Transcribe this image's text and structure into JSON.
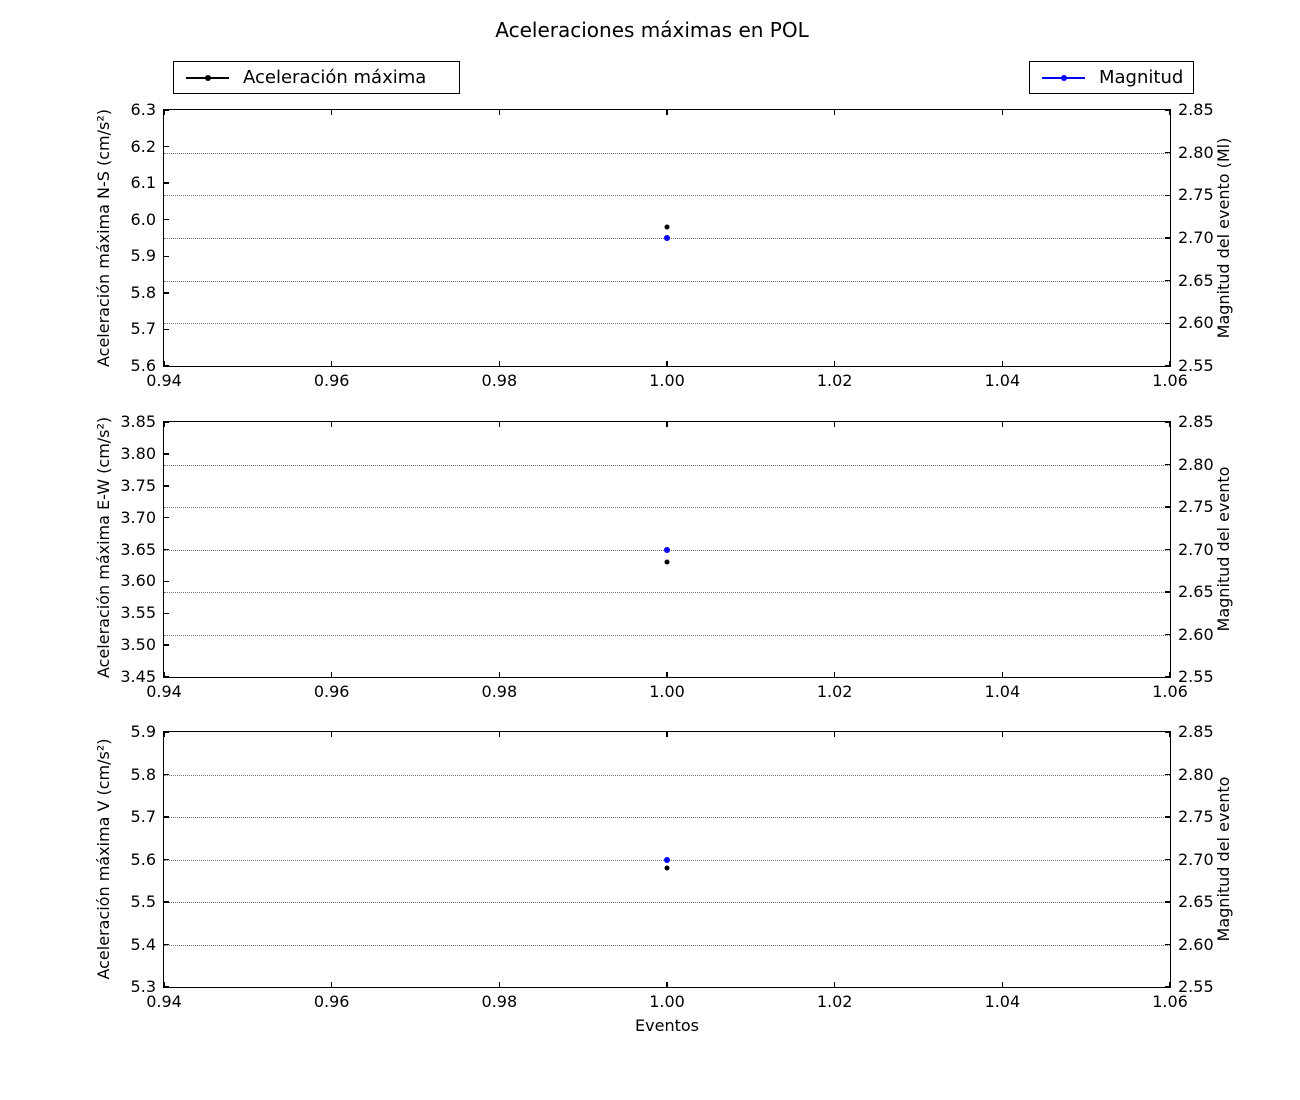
{
  "figure": {
    "title": "Aceleraciones máximas en POL",
    "xlabel": "Eventos",
    "background": "#ffffff",
    "colors": {
      "acceleration": "#000000",
      "magnitude": "#0000ff",
      "grid": "#777777",
      "frame": "#000000"
    }
  },
  "legends": [
    {
      "label": "Aceleración máxima",
      "color": "#000000"
    },
    {
      "label": "Magnitud",
      "color": "#0000ff"
    }
  ],
  "chart_data": [
    {
      "type": "scatter",
      "ylabel": "Aceleración máxima N-S (cm/s²)",
      "y2label": "Magnitud del evento (Ml)",
      "xlim": [
        0.94,
        1.06
      ],
      "ylim": [
        5.6,
        6.3
      ],
      "y2lim": [
        2.55,
        2.85
      ],
      "xticks": [
        "0.94",
        "0.96",
        "0.98",
        "1.00",
        "1.02",
        "1.04",
        "1.06"
      ],
      "yticks": [
        "5.6",
        "5.7",
        "5.8",
        "5.9",
        "6.0",
        "6.1",
        "6.2",
        "6.3"
      ],
      "y2ticks": [
        "2.55",
        "2.60",
        "2.65",
        "2.70",
        "2.75",
        "2.80",
        "2.85"
      ],
      "grid": {
        "axis": "y2",
        "style": "dotted",
        "skip_edges": true
      },
      "series": [
        {
          "name": "Aceleración máxima",
          "axis": "y",
          "color": "#000000",
          "marker_px": 5,
          "points": [
            {
              "x": 1.0,
              "y": 5.98
            }
          ]
        },
        {
          "name": "Magnitud",
          "axis": "y2",
          "color": "#0000ff",
          "marker_px": 6,
          "points": [
            {
              "x": 1.0,
              "y": 2.7
            }
          ]
        }
      ]
    },
    {
      "type": "scatter",
      "ylabel": "Aceleración máxima E-W (cm/s²)",
      "y2label": "Magnitud del evento",
      "xlim": [
        0.94,
        1.06
      ],
      "ylim": [
        3.45,
        3.85
      ],
      "y2lim": [
        2.55,
        2.85
      ],
      "xticks": [
        "0.94",
        "0.96",
        "0.98",
        "1.00",
        "1.02",
        "1.04",
        "1.06"
      ],
      "yticks": [
        "3.45",
        "3.50",
        "3.55",
        "3.60",
        "3.65",
        "3.70",
        "3.75",
        "3.80",
        "3.85"
      ],
      "y2ticks": [
        "2.55",
        "2.60",
        "2.65",
        "2.70",
        "2.75",
        "2.80",
        "2.85"
      ],
      "grid": {
        "axis": "y2",
        "style": "dotted",
        "skip_edges": true
      },
      "series": [
        {
          "name": "Aceleración máxima",
          "axis": "y",
          "color": "#000000",
          "marker_px": 5,
          "points": [
            {
              "x": 1.0,
              "y": 3.63
            }
          ]
        },
        {
          "name": "Magnitud",
          "axis": "y2",
          "color": "#0000ff",
          "marker_px": 6,
          "points": [
            {
              "x": 1.0,
              "y": 2.7
            }
          ]
        }
      ]
    },
    {
      "type": "scatter",
      "ylabel": "Aceleración máxima V (cm/s²)",
      "y2label": "Magnitud del evento",
      "xlim": [
        0.94,
        1.06
      ],
      "ylim": [
        5.3,
        5.9
      ],
      "y2lim": [
        2.55,
        2.85
      ],
      "xticks": [
        "0.94",
        "0.96",
        "0.98",
        "1.00",
        "1.02",
        "1.04",
        "1.06"
      ],
      "yticks": [
        "5.3",
        "5.4",
        "5.5",
        "5.6",
        "5.7",
        "5.8",
        "5.9"
      ],
      "y2ticks": [
        "2.55",
        "2.60",
        "2.65",
        "2.70",
        "2.75",
        "2.80",
        "2.85"
      ],
      "grid": {
        "axis": "y2",
        "style": "dotted",
        "skip_edges": true
      },
      "series": [
        {
          "name": "Aceleración máxima",
          "axis": "y",
          "color": "#000000",
          "marker_px": 5,
          "points": [
            {
              "x": 1.0,
              "y": 5.58
            }
          ]
        },
        {
          "name": "Magnitud",
          "axis": "y2",
          "color": "#0000ff",
          "marker_px": 6,
          "points": [
            {
              "x": 1.0,
              "y": 2.7
            }
          ]
        }
      ]
    }
  ]
}
